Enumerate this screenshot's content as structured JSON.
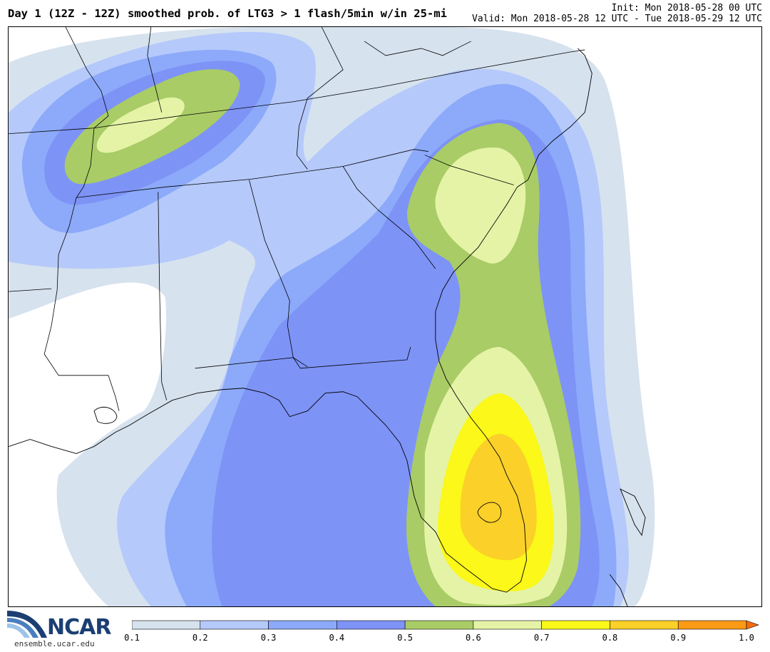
{
  "header": {
    "title": "Day 1 (12Z - 12Z) smoothed prob. of LTG3 > 1 flash/5min w/in 25-mi",
    "init": "Init: Mon 2018-05-28 00 UTC",
    "valid": "Valid: Mon 2018-05-28 12 UTC - Tue 2018-05-29 12 UTC"
  },
  "logo": {
    "name": "NCAR",
    "url": "ensemble.ucar.edu"
  },
  "colorbar": {
    "ticks": [
      "0.1",
      "0.2",
      "0.3",
      "0.4",
      "0.5",
      "0.6",
      "0.7",
      "0.8",
      "0.9",
      "1.0"
    ],
    "colors": [
      "#d6e2ee",
      "#b5c9fb",
      "#8caaf9",
      "#7e93f6",
      "#a9cc66",
      "#e5f3a6",
      "#fbf81a",
      "#fbd028",
      "#fb9a14"
    ],
    "arrow_color": "#f46d12"
  }
}
